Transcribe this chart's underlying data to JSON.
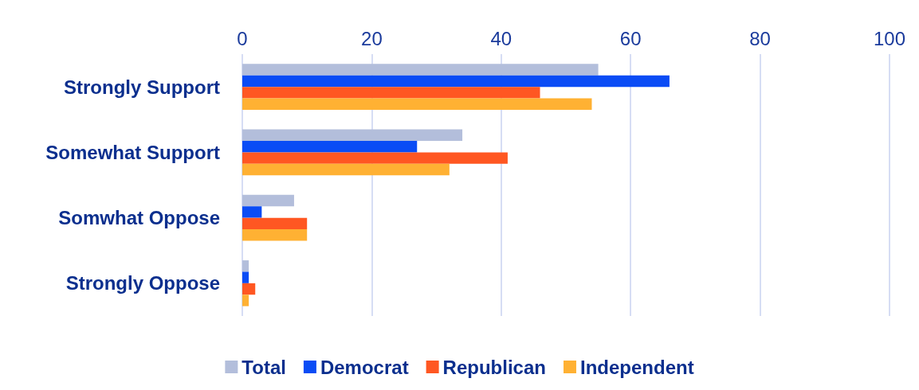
{
  "chart_data": {
    "type": "bar",
    "orientation": "horizontal",
    "categories": [
      "Strongly Support",
      "Somewhat Support",
      "Somwhat Oppose",
      "Strongly Oppose"
    ],
    "series": [
      {
        "name": "Total",
        "color": "#b3bedb",
        "values": [
          55,
          34,
          8,
          1
        ]
      },
      {
        "name": "Democrat",
        "color": "#0a4cf5",
        "values": [
          66,
          27,
          3,
          1
        ]
      },
      {
        "name": "Republican",
        "color": "#ff5722",
        "values": [
          46,
          41,
          10,
          2
        ]
      },
      {
        "name": "Independent",
        "color": "#ffb133",
        "values": [
          54,
          32,
          10,
          1
        ]
      }
    ],
    "xlim": [
      0,
      100
    ],
    "xticks": [
      0,
      20,
      40,
      60,
      80,
      100
    ],
    "grid": "x",
    "legend": "bottom"
  }
}
